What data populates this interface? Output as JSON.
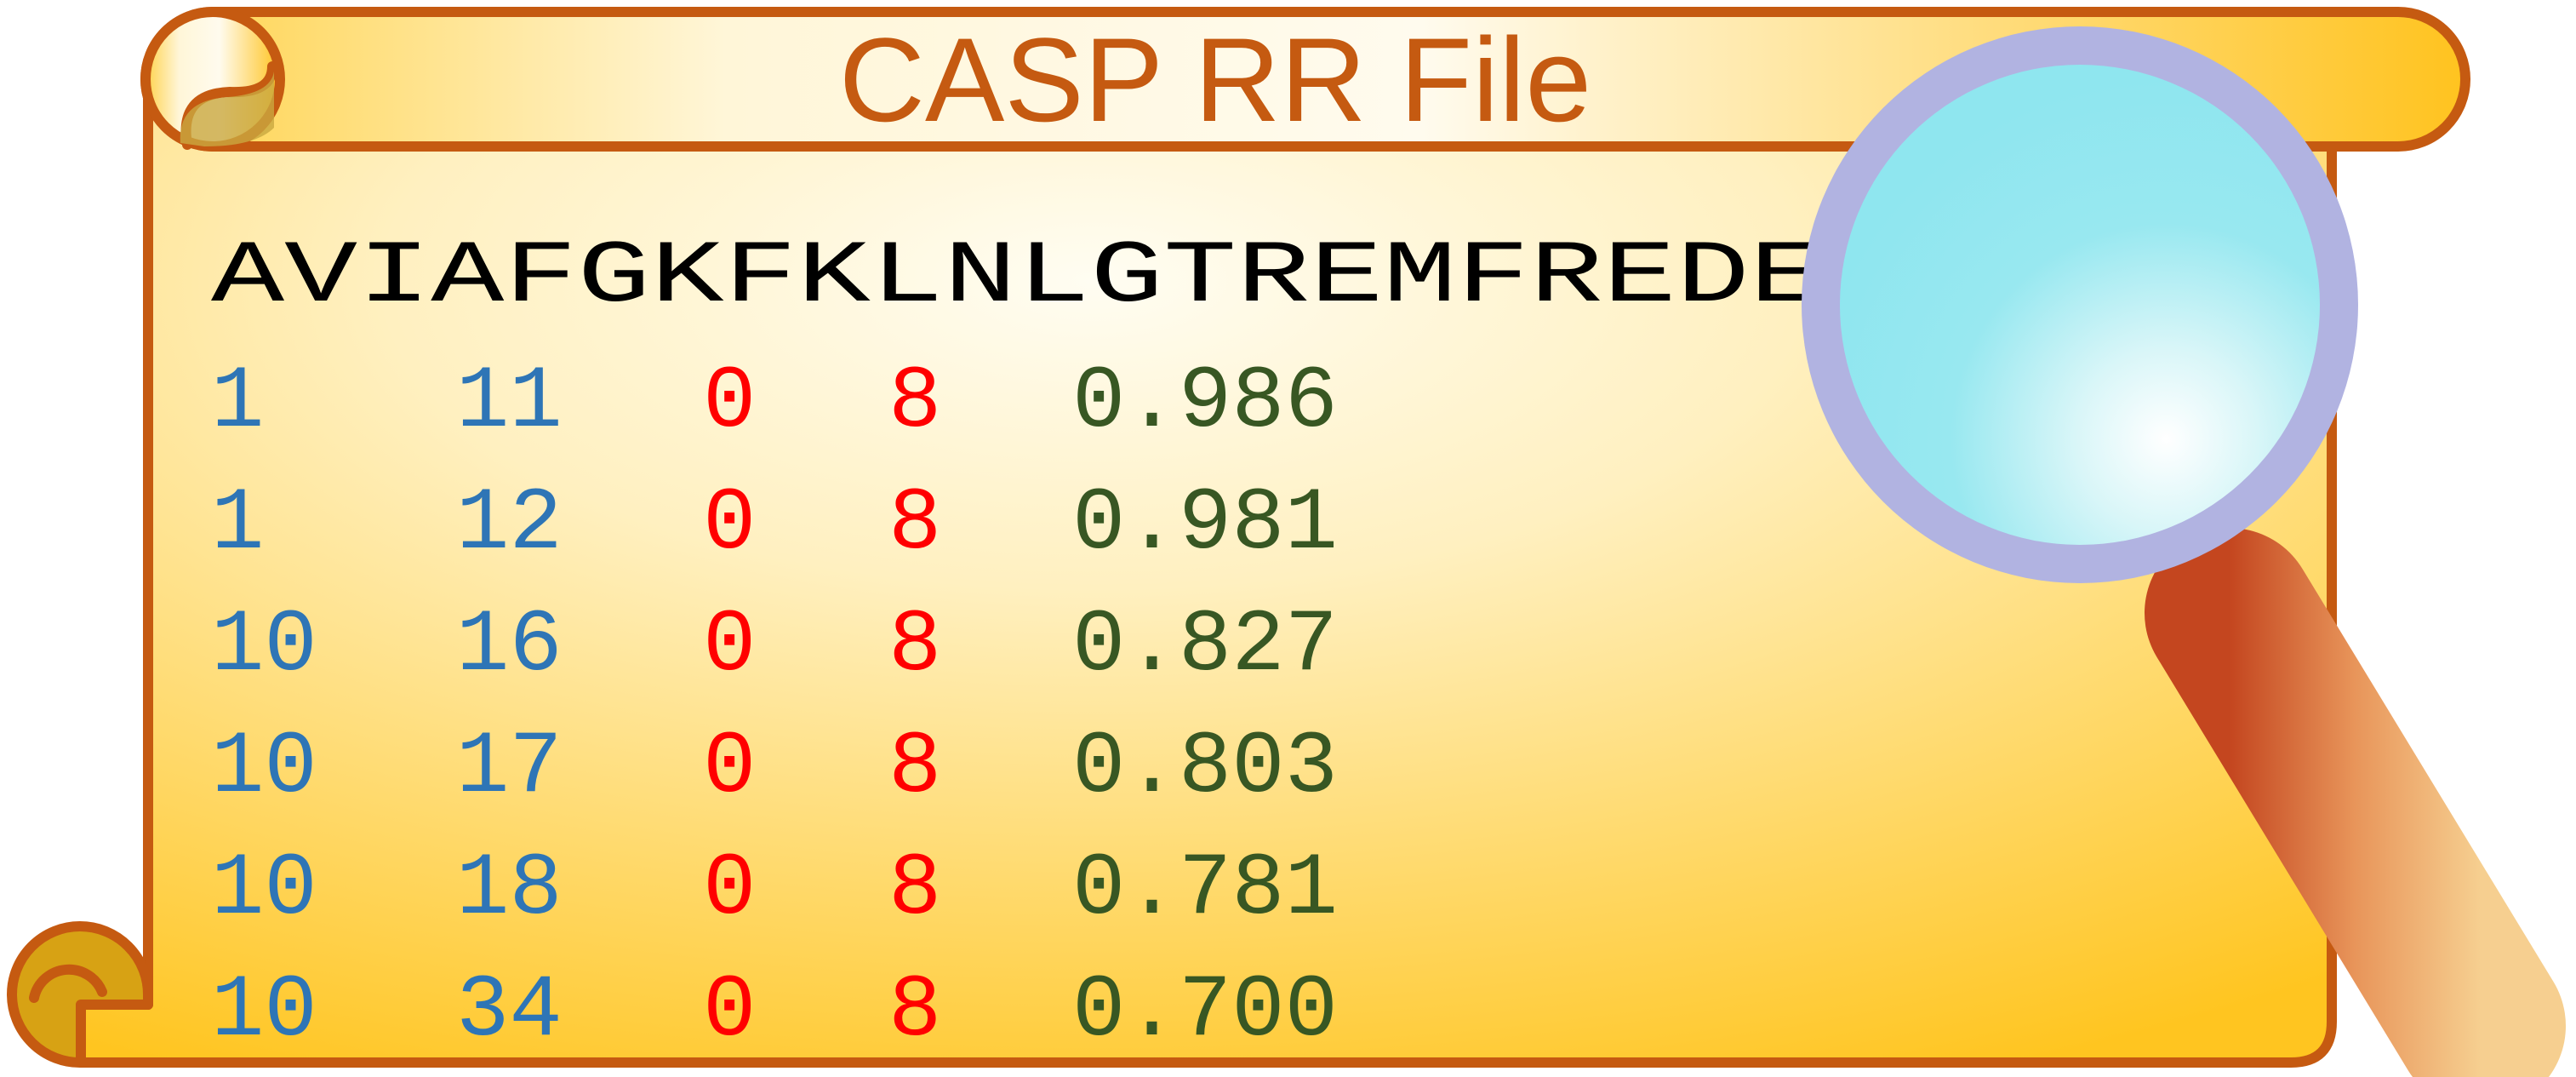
{
  "title": "CASP RR File",
  "sequence": "AVIAFGKFKLNLGTREMFREDEP",
  "rows": [
    {
      "i": "1",
      "j": "11",
      "d1": "0",
      "d2": "8",
      "p": "0.986"
    },
    {
      "i": "1",
      "j": "12",
      "d1": "0",
      "d2": "8",
      "p": "0.981"
    },
    {
      "i": "10",
      "j": "16",
      "d1": "0",
      "d2": "8",
      "p": "0.827"
    },
    {
      "i": "10",
      "j": "17",
      "d1": "0",
      "d2": "8",
      "p": "0.803"
    },
    {
      "i": "10",
      "j": "18",
      "d1": "0",
      "d2": "8",
      "p": "0.781"
    },
    {
      "i": "10",
      "j": "34",
      "d1": "0",
      "d2": "8",
      "p": "0.700"
    }
  ],
  "colors": {
    "outline": "#c55a11",
    "parchment_light": "#fffbea",
    "parchment_dark": "#ffc31f",
    "sequence_text": "#000000",
    "residue_index": "#2e75b6",
    "distance_bounds": "#ff0000",
    "probability": "#385723",
    "lens_glass": "#8ee8f0",
    "lens_rim": "#b0b3e0",
    "handle": "#e27a3f"
  },
  "icons": [
    "scroll-icon",
    "magnifying-glass-icon"
  ]
}
